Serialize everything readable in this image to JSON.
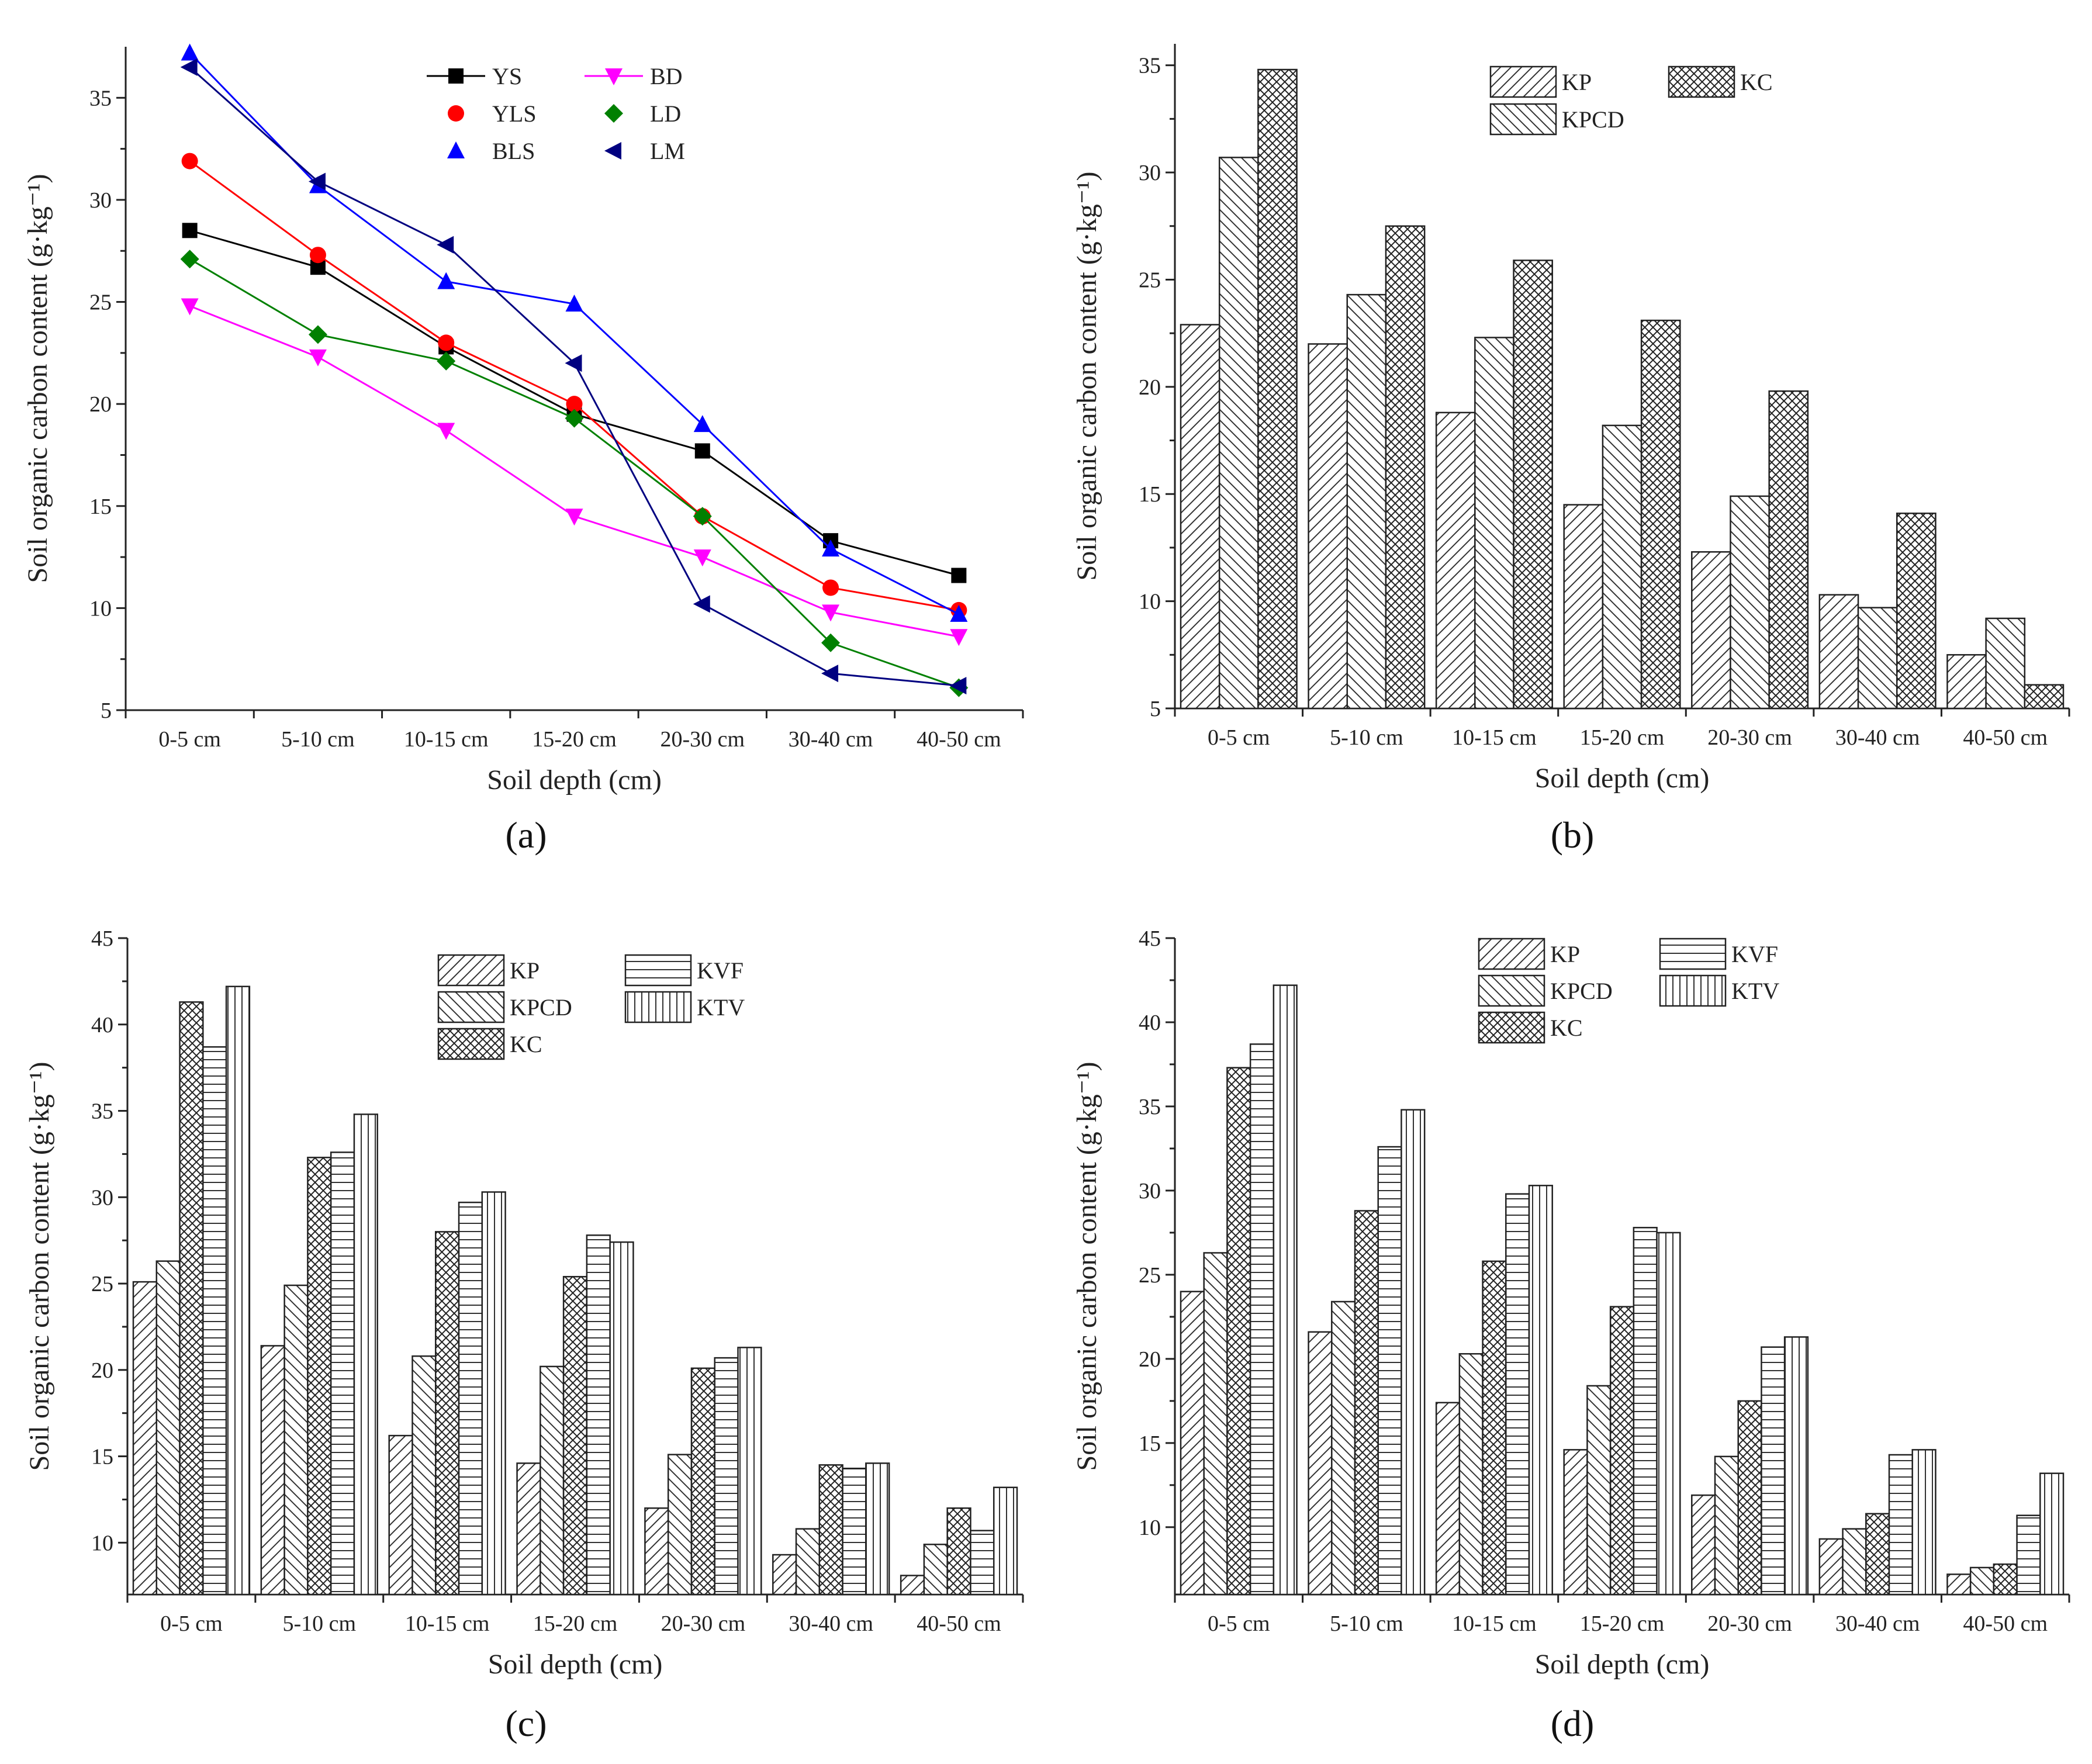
{
  "figure": {
    "panel_labels": [
      "(a)",
      "(b)",
      "(c)",
      "(d)"
    ]
  },
  "colors": {
    "YS": "#000000",
    "YLS": "#ff0000",
    "BLS": "#0000ff",
    "BD": "#ff00ff",
    "LD": "#008000",
    "LM": "#000080",
    "axis": "#222222"
  },
  "chart_data": [
    {
      "id": "a",
      "type": "line",
      "xlabel": "Soil depth (cm)",
      "ylabel": "Soil organic carbon content (g·kg⁻¹)",
      "categories": [
        "0-5 cm",
        "5-10 cm",
        "10-15 cm",
        "15-20 cm",
        "20-30 cm",
        "30-40 cm",
        "40-50 cm"
      ],
      "ylim": [
        5,
        37.5
      ],
      "yticks": [
        5,
        10,
        15,
        20,
        25,
        30,
        35
      ],
      "legend_position": "top",
      "series": [
        {
          "name": "YS",
          "marker": "square",
          "values": [
            28.5,
            26.7,
            22.8,
            19.5,
            17.7,
            13.3,
            11.6
          ]
        },
        {
          "name": "YLS",
          "marker": "circle",
          "values": [
            31.9,
            27.3,
            23.0,
            20.0,
            14.5,
            11.0,
            9.9
          ]
        },
        {
          "name": "BLS",
          "marker": "triangle-up",
          "values": [
            37.2,
            30.7,
            26.0,
            24.9,
            19.0,
            12.9,
            9.7
          ]
        },
        {
          "name": "BD",
          "marker": "triangle-down",
          "values": [
            24.8,
            22.3,
            18.7,
            14.5,
            12.5,
            9.8,
            8.6
          ]
        },
        {
          "name": "LD",
          "marker": "diamond",
          "values": [
            27.1,
            23.4,
            22.1,
            19.3,
            14.5,
            8.3,
            6.1
          ]
        },
        {
          "name": "LM",
          "marker": "triangle-left",
          "values": [
            36.5,
            30.9,
            27.8,
            22.0,
            10.2,
            6.8,
            6.2
          ]
        }
      ]
    },
    {
      "id": "b",
      "type": "bar",
      "xlabel": "Soil depth (cm)",
      "ylabel": "Soil organic carbon content (g·kg⁻¹)",
      "categories": [
        "0-5 cm",
        "5-10 cm",
        "10-15 cm",
        "15-20 cm",
        "20-30 cm",
        "30-40 cm",
        "40-50 cm"
      ],
      "ylim": [
        5,
        36
      ],
      "yticks": [
        5,
        10,
        15,
        20,
        25,
        30,
        35
      ],
      "legend_position": "top-center",
      "series": [
        {
          "name": "KP",
          "pattern": "diag-fwd",
          "values": [
            22.9,
            22.0,
            18.8,
            14.5,
            12.3,
            10.3,
            7.5
          ]
        },
        {
          "name": "KPCD",
          "pattern": "diag-back",
          "values": [
            30.7,
            24.3,
            22.3,
            18.2,
            14.9,
            9.7,
            9.2
          ]
        },
        {
          "name": "KC",
          "pattern": "crosshatch",
          "values": [
            34.8,
            27.5,
            25.9,
            23.1,
            19.8,
            14.1,
            6.1
          ]
        }
      ]
    },
    {
      "id": "c",
      "type": "bar",
      "xlabel": "Soil depth (cm)",
      "ylabel": "Soil organic carbon content (g·kg⁻¹)",
      "categories": [
        "0-5 cm",
        "5-10 cm",
        "10-15 cm",
        "15-20 cm",
        "20-30 cm",
        "30-40 cm",
        "40-50 cm"
      ],
      "ylim": [
        7,
        45
      ],
      "yticks": [
        10,
        15,
        20,
        25,
        30,
        35,
        40,
        45
      ],
      "legend_position": "top-center",
      "series": [
        {
          "name": "KP",
          "pattern": "diag-fwd",
          "values": [
            25.1,
            21.4,
            16.2,
            14.6,
            12.0,
            9.3,
            8.1
          ]
        },
        {
          "name": "KPCD",
          "pattern": "diag-back",
          "values": [
            26.3,
            24.9,
            20.8,
            20.2,
            15.1,
            10.8,
            9.9
          ]
        },
        {
          "name": "KC",
          "pattern": "crosshatch",
          "values": [
            41.3,
            32.3,
            28.0,
            25.4,
            20.1,
            14.5,
            12.0
          ]
        },
        {
          "name": "KVF",
          "pattern": "horizontal",
          "values": [
            38.7,
            32.6,
            29.7,
            27.8,
            20.7,
            14.3,
            10.7
          ]
        },
        {
          "name": "KTV",
          "pattern": "vertical",
          "values": [
            42.2,
            34.8,
            30.3,
            27.4,
            21.3,
            14.6,
            13.2
          ]
        }
      ]
    },
    {
      "id": "d",
      "type": "bar",
      "xlabel": "Soil depth (cm)",
      "ylabel": "Soil organic carbon content (g·kg⁻¹)",
      "categories": [
        "0-5 cm",
        "5-10 cm",
        "10-15 cm",
        "15-20 cm",
        "20-30 cm",
        "30-40 cm",
        "40-50 cm"
      ],
      "ylim": [
        6,
        45
      ],
      "yticks": [
        10,
        15,
        20,
        25,
        30,
        35,
        40,
        45
      ],
      "legend_position": "top-center",
      "series": [
        {
          "name": "KP",
          "pattern": "diag-fwd",
          "values": [
            24.0,
            21.6,
            17.4,
            14.6,
            11.9,
            9.3,
            7.2
          ]
        },
        {
          "name": "KPCD",
          "pattern": "diag-back",
          "values": [
            26.3,
            23.4,
            20.3,
            18.4,
            14.2,
            9.9,
            7.6
          ]
        },
        {
          "name": "KC",
          "pattern": "crosshatch",
          "values": [
            37.3,
            28.8,
            25.8,
            23.1,
            17.5,
            10.8,
            7.8
          ]
        },
        {
          "name": "KVF",
          "pattern": "horizontal",
          "values": [
            38.7,
            32.6,
            29.8,
            27.8,
            20.7,
            14.3,
            10.7
          ]
        },
        {
          "name": "KTV",
          "pattern": "vertical",
          "values": [
            42.2,
            34.8,
            30.3,
            27.5,
            21.3,
            14.6,
            13.2
          ]
        }
      ]
    }
  ]
}
